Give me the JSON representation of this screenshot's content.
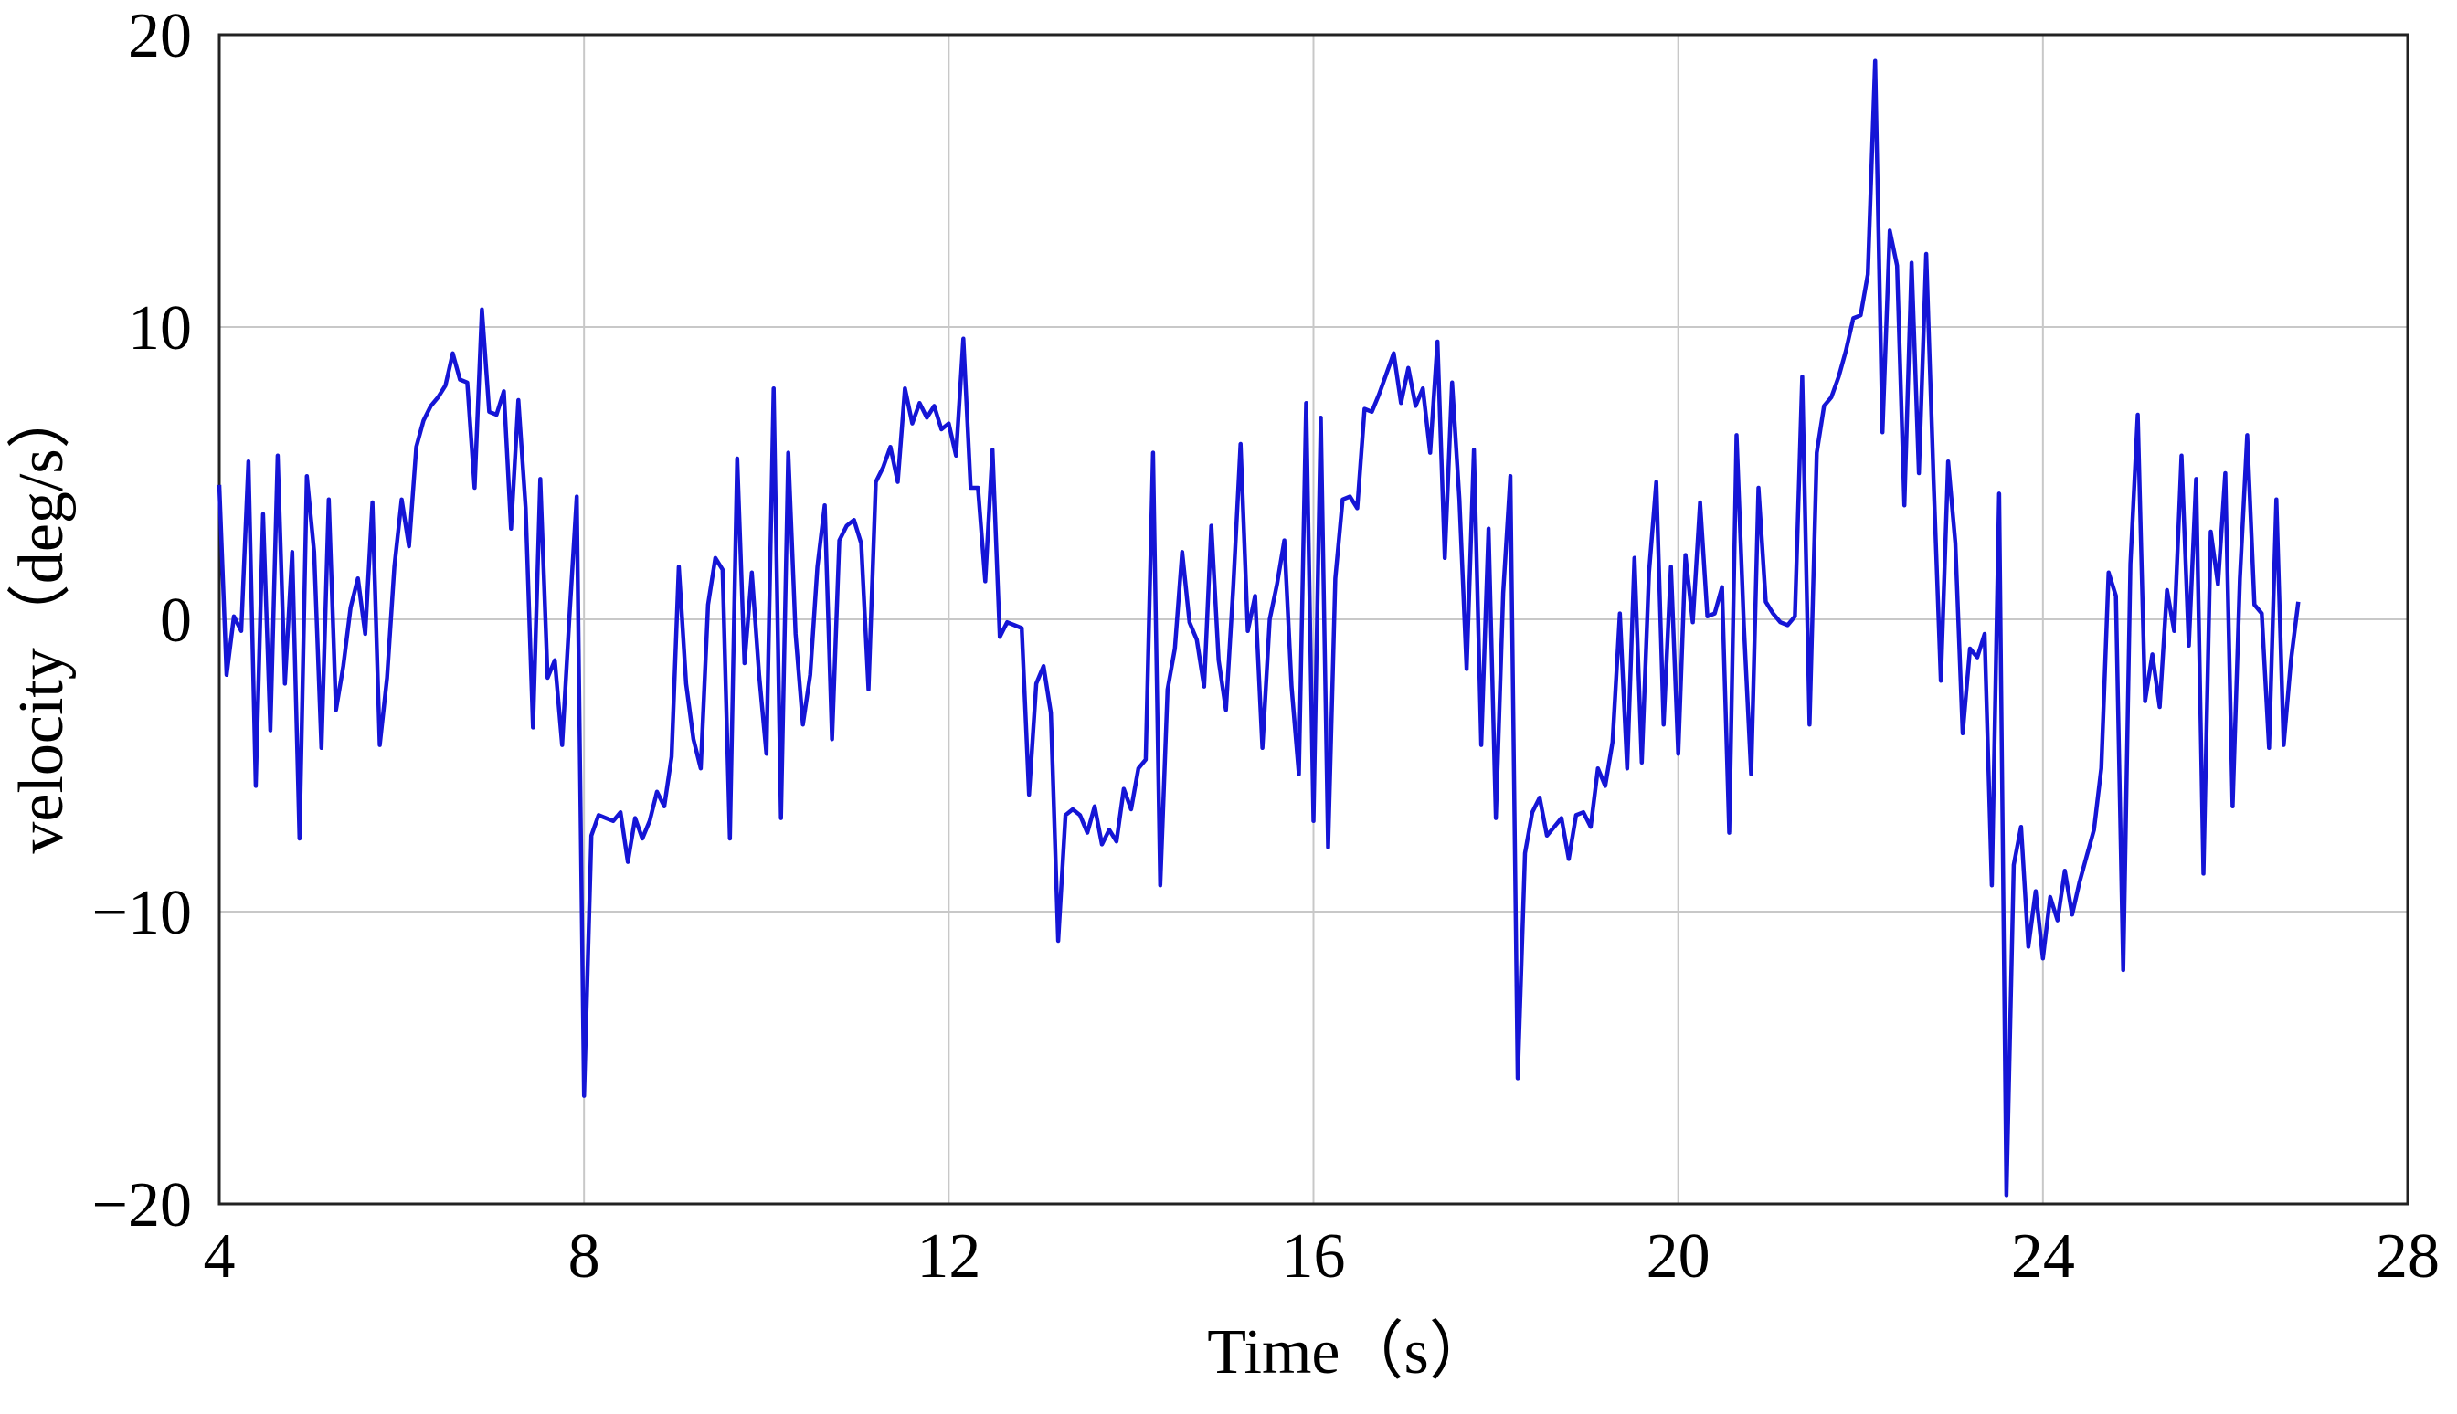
{
  "chart_data": {
    "type": "line",
    "xlabel": "Time（s）",
    "ylabel": "velocity（deg/s）",
    "xlim": [
      4,
      28
    ],
    "ylim": [
      -20,
      20
    ],
    "xticks": [
      "4",
      "8",
      "12",
      "16",
      "20",
      "24",
      "28"
    ],
    "yticks": [
      "20",
      "10",
      "0",
      "−10",
      "−20"
    ],
    "grid": true,
    "colors": {
      "line": "#1515d6"
    },
    "series": [
      {
        "values": [
          [
            4.0,
            4.6
          ],
          [
            4.08,
            -1.9
          ],
          [
            4.16,
            0.1
          ],
          [
            4.24,
            -0.4
          ],
          [
            4.32,
            5.4
          ],
          [
            4.4,
            -5.7
          ],
          [
            4.48,
            3.6
          ],
          [
            4.56,
            -3.8
          ],
          [
            4.64,
            5.6
          ],
          [
            4.72,
            -2.2
          ],
          [
            4.8,
            2.3
          ],
          [
            4.88,
            -7.5
          ],
          [
            4.96,
            4.9
          ],
          [
            5.04,
            2.3
          ],
          [
            5.12,
            -4.4
          ],
          [
            5.2,
            4.1
          ],
          [
            5.28,
            -3.1
          ],
          [
            5.36,
            -1.6
          ],
          [
            5.44,
            0.4
          ],
          [
            5.52,
            1.4
          ],
          [
            5.6,
            -0.5
          ],
          [
            5.68,
            4.0
          ],
          [
            5.76,
            -4.3
          ],
          [
            5.84,
            -2.0
          ],
          [
            5.92,
            1.8
          ],
          [
            6.0,
            4.1
          ],
          [
            6.08,
            2.5
          ],
          [
            6.16,
            5.9
          ],
          [
            6.24,
            6.8
          ],
          [
            6.32,
            7.3
          ],
          [
            6.4,
            7.6
          ],
          [
            6.48,
            8.0
          ],
          [
            6.56,
            9.1
          ],
          [
            6.64,
            8.2
          ],
          [
            6.72,
            8.1
          ],
          [
            6.8,
            4.5
          ],
          [
            6.88,
            10.6
          ],
          [
            6.96,
            7.1
          ],
          [
            7.04,
            7.0
          ],
          [
            7.12,
            7.8
          ],
          [
            7.2,
            3.1
          ],
          [
            7.28,
            7.5
          ],
          [
            7.36,
            3.8
          ],
          [
            7.44,
            -3.7
          ],
          [
            7.52,
            4.8
          ],
          [
            7.6,
            -2.0
          ],
          [
            7.68,
            -1.4
          ],
          [
            7.76,
            -4.3
          ],
          [
            7.84,
            0.1
          ],
          [
            7.92,
            4.2
          ],
          [
            8.0,
            -16.3
          ],
          [
            8.08,
            -7.4
          ],
          [
            8.16,
            -6.7
          ],
          [
            8.24,
            -6.8
          ],
          [
            8.32,
            -6.9
          ],
          [
            8.4,
            -6.6
          ],
          [
            8.48,
            -8.3
          ],
          [
            8.56,
            -6.8
          ],
          [
            8.64,
            -7.5
          ],
          [
            8.72,
            -6.9
          ],
          [
            8.8,
            -5.9
          ],
          [
            8.88,
            -6.4
          ],
          [
            8.96,
            -4.7
          ],
          [
            9.04,
            1.8
          ],
          [
            9.12,
            -2.2
          ],
          [
            9.2,
            -4.1
          ],
          [
            9.28,
            -5.1
          ],
          [
            9.36,
            0.5
          ],
          [
            9.44,
            2.1
          ],
          [
            9.52,
            1.7
          ],
          [
            9.6,
            -7.5
          ],
          [
            9.68,
            5.5
          ],
          [
            9.76,
            -1.5
          ],
          [
            9.84,
            1.6
          ],
          [
            9.92,
            -1.9
          ],
          [
            10.0,
            -4.6
          ],
          [
            10.08,
            7.9
          ],
          [
            10.16,
            -6.8
          ],
          [
            10.24,
            5.7
          ],
          [
            10.32,
            -0.5
          ],
          [
            10.4,
            -3.6
          ],
          [
            10.48,
            -1.9
          ],
          [
            10.56,
            1.8
          ],
          [
            10.64,
            3.9
          ],
          [
            10.72,
            -4.1
          ],
          [
            10.8,
            2.7
          ],
          [
            10.88,
            3.2
          ],
          [
            10.96,
            3.4
          ],
          [
            11.04,
            2.6
          ],
          [
            11.12,
            -2.4
          ],
          [
            11.2,
            4.7
          ],
          [
            11.28,
            5.2
          ],
          [
            11.36,
            5.9
          ],
          [
            11.44,
            4.7
          ],
          [
            11.52,
            7.9
          ],
          [
            11.6,
            6.7
          ],
          [
            11.68,
            7.4
          ],
          [
            11.76,
            6.9
          ],
          [
            11.84,
            7.3
          ],
          [
            11.92,
            6.5
          ],
          [
            12.0,
            6.7
          ],
          [
            12.08,
            5.6
          ],
          [
            12.16,
            9.6
          ],
          [
            12.24,
            4.5
          ],
          [
            12.32,
            4.5
          ],
          [
            12.4,
            1.3
          ],
          [
            12.48,
            5.8
          ],
          [
            12.56,
            -0.6
          ],
          [
            12.64,
            -0.1
          ],
          [
            12.72,
            -0.2
          ],
          [
            12.8,
            -0.3
          ],
          [
            12.88,
            -6.0
          ],
          [
            12.96,
            -2.2
          ],
          [
            13.04,
            -1.6
          ],
          [
            13.12,
            -3.2
          ],
          [
            13.2,
            -11.0
          ],
          [
            13.28,
            -6.7
          ],
          [
            13.36,
            -6.5
          ],
          [
            13.44,
            -6.7
          ],
          [
            13.52,
            -7.3
          ],
          [
            13.6,
            -6.4
          ],
          [
            13.68,
            -7.7
          ],
          [
            13.76,
            -7.2
          ],
          [
            13.84,
            -7.6
          ],
          [
            13.92,
            -5.8
          ],
          [
            14.0,
            -6.5
          ],
          [
            14.08,
            -5.1
          ],
          [
            14.16,
            -4.8
          ],
          [
            14.24,
            5.7
          ],
          [
            14.32,
            -9.1
          ],
          [
            14.4,
            -2.4
          ],
          [
            14.48,
            -1.0
          ],
          [
            14.56,
            2.3
          ],
          [
            14.64,
            -0.1
          ],
          [
            14.72,
            -0.7
          ],
          [
            14.8,
            -2.3
          ],
          [
            14.88,
            3.2
          ],
          [
            14.96,
            -1.4
          ],
          [
            15.04,
            -3.1
          ],
          [
            15.12,
            1.1
          ],
          [
            15.2,
            6.0
          ],
          [
            15.28,
            -0.4
          ],
          [
            15.36,
            0.8
          ],
          [
            15.44,
            -4.4
          ],
          [
            15.52,
            0.0
          ],
          [
            15.6,
            1.2
          ],
          [
            15.68,
            2.7
          ],
          [
            15.76,
            -2.3
          ],
          [
            15.84,
            -5.3
          ],
          [
            15.92,
            7.4
          ],
          [
            16.0,
            -6.9
          ],
          [
            16.08,
            6.9
          ],
          [
            16.16,
            -7.8
          ],
          [
            16.24,
            1.4
          ],
          [
            16.32,
            4.1
          ],
          [
            16.4,
            4.2
          ],
          [
            16.48,
            3.8
          ],
          [
            16.56,
            7.2
          ],
          [
            16.64,
            7.1
          ],
          [
            16.72,
            7.7
          ],
          [
            16.8,
            8.4
          ],
          [
            16.88,
            9.1
          ],
          [
            16.96,
            7.4
          ],
          [
            17.04,
            8.6
          ],
          [
            17.12,
            7.3
          ],
          [
            17.2,
            7.9
          ],
          [
            17.28,
            5.7
          ],
          [
            17.36,
            9.5
          ],
          [
            17.44,
            2.1
          ],
          [
            17.52,
            8.1
          ],
          [
            17.6,
            4.1
          ],
          [
            17.68,
            -1.7
          ],
          [
            17.76,
            5.8
          ],
          [
            17.84,
            -4.3
          ],
          [
            17.92,
            3.1
          ],
          [
            18.0,
            -6.8
          ],
          [
            18.08,
            0.9
          ],
          [
            18.16,
            4.9
          ],
          [
            18.24,
            -15.7
          ],
          [
            18.32,
            -8.0
          ],
          [
            18.4,
            -6.6
          ],
          [
            18.48,
            -6.1
          ],
          [
            18.56,
            -7.4
          ],
          [
            18.64,
            -7.1
          ],
          [
            18.72,
            -6.8
          ],
          [
            18.8,
            -8.2
          ],
          [
            18.88,
            -6.7
          ],
          [
            18.96,
            -6.6
          ],
          [
            19.04,
            -7.1
          ],
          [
            19.12,
            -5.1
          ],
          [
            19.2,
            -5.7
          ],
          [
            19.28,
            -4.2
          ],
          [
            19.36,
            0.2
          ],
          [
            19.44,
            -5.1
          ],
          [
            19.52,
            2.1
          ],
          [
            19.6,
            -4.9
          ],
          [
            19.68,
            1.6
          ],
          [
            19.76,
            4.7
          ],
          [
            19.84,
            -3.6
          ],
          [
            19.92,
            1.8
          ],
          [
            20.0,
            -4.6
          ],
          [
            20.08,
            2.2
          ],
          [
            20.16,
            -0.1
          ],
          [
            20.24,
            4.0
          ],
          [
            20.32,
            0.1
          ],
          [
            20.4,
            0.2
          ],
          [
            20.48,
            1.1
          ],
          [
            20.56,
            -7.3
          ],
          [
            20.64,
            6.3
          ],
          [
            20.72,
            -0.2
          ],
          [
            20.8,
            -5.3
          ],
          [
            20.88,
            4.5
          ],
          [
            20.96,
            0.6
          ],
          [
            21.04,
            0.2
          ],
          [
            21.12,
            -0.1
          ],
          [
            21.2,
            -0.2
          ],
          [
            21.28,
            0.1
          ],
          [
            21.36,
            8.3
          ],
          [
            21.44,
            -3.6
          ],
          [
            21.52,
            5.7
          ],
          [
            21.6,
            7.3
          ],
          [
            21.68,
            7.6
          ],
          [
            21.76,
            8.3
          ],
          [
            21.84,
            9.2
          ],
          [
            21.92,
            10.3
          ],
          [
            22.0,
            10.4
          ],
          [
            22.08,
            11.8
          ],
          [
            22.16,
            19.1
          ],
          [
            22.24,
            6.4
          ],
          [
            22.32,
            13.3
          ],
          [
            22.4,
            12.1
          ],
          [
            22.48,
            3.9
          ],
          [
            22.56,
            12.2
          ],
          [
            22.64,
            5.0
          ],
          [
            22.72,
            12.5
          ],
          [
            22.8,
            4.8
          ],
          [
            22.88,
            -2.1
          ],
          [
            22.96,
            5.4
          ],
          [
            23.04,
            2.6
          ],
          [
            23.12,
            -3.9
          ],
          [
            23.2,
            -1.0
          ],
          [
            23.28,
            -1.3
          ],
          [
            23.36,
            -0.5
          ],
          [
            23.44,
            -9.1
          ],
          [
            23.52,
            4.3
          ],
          [
            23.6,
            -19.7
          ],
          [
            23.68,
            -8.4
          ],
          [
            23.76,
            -7.1
          ],
          [
            23.84,
            -11.2
          ],
          [
            23.92,
            -9.3
          ],
          [
            24.0,
            -11.6
          ],
          [
            24.08,
            -9.5
          ],
          [
            24.16,
            -10.3
          ],
          [
            24.24,
            -8.6
          ],
          [
            24.32,
            -10.1
          ],
          [
            24.4,
            -9.0
          ],
          [
            24.48,
            -8.1
          ],
          [
            24.56,
            -7.2
          ],
          [
            24.64,
            -5.1
          ],
          [
            24.72,
            1.6
          ],
          [
            24.8,
            0.8
          ],
          [
            24.88,
            -12.0
          ],
          [
            24.96,
            1.9
          ],
          [
            25.04,
            7.0
          ],
          [
            25.12,
            -2.8
          ],
          [
            25.2,
            -1.2
          ],
          [
            25.28,
            -3.0
          ],
          [
            25.36,
            1.0
          ],
          [
            25.44,
            -0.4
          ],
          [
            25.52,
            5.6
          ],
          [
            25.6,
            -0.9
          ],
          [
            25.68,
            4.8
          ],
          [
            25.76,
            -8.7
          ],
          [
            25.84,
            3.0
          ],
          [
            25.92,
            1.2
          ],
          [
            26.0,
            5.0
          ],
          [
            26.08,
            -6.4
          ],
          [
            26.16,
            1.4
          ],
          [
            26.24,
            6.3
          ],
          [
            26.32,
            0.5
          ],
          [
            26.4,
            0.2
          ],
          [
            26.48,
            -4.4
          ],
          [
            26.56,
            4.1
          ],
          [
            26.64,
            -4.3
          ],
          [
            26.72,
            -1.4
          ],
          [
            26.8,
            0.6
          ]
        ]
      }
    ]
  }
}
